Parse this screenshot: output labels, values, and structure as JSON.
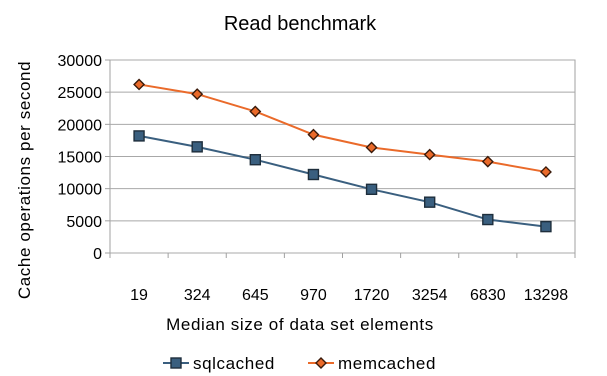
{
  "chart_data": {
    "type": "line",
    "title": "Read benchmark",
    "xlabel": "Median size of data set elements",
    "ylabel": "Cache operations per second",
    "categories": [
      "19",
      "324",
      "645",
      "970",
      "1720",
      "3254",
      "6830",
      "13298"
    ],
    "ylim": [
      0,
      30000
    ],
    "yticks": [
      0,
      5000,
      10000,
      15000,
      20000,
      25000,
      30000
    ],
    "grid": "horizontal",
    "legend_position": "bottom",
    "series": [
      {
        "name": "sqlcached",
        "color": "#3a5f7f",
        "marker": "square",
        "values": [
          18200,
          16500,
          14500,
          12200,
          9900,
          7900,
          5200,
          4100
        ]
      },
      {
        "name": "memcached",
        "color": "#ea6a2a",
        "marker": "diamond",
        "values": [
          26200,
          24700,
          22000,
          18400,
          16400,
          15300,
          14200,
          12600
        ]
      }
    ]
  }
}
